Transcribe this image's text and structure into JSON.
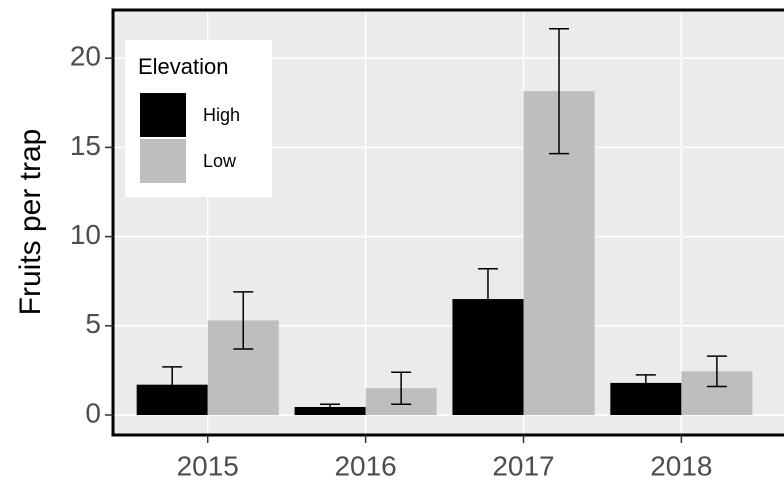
{
  "chart_data": {
    "type": "bar",
    "y_label": "Fruits per trap",
    "categories": [
      "2015",
      "2016",
      "2017",
      "2018"
    ],
    "legend_title": "Elevation",
    "series": [
      {
        "name": "High",
        "color": "#000000",
        "values": [
          1.7,
          0.45,
          6.5,
          1.8
        ],
        "errors": [
          1.0,
          0.15,
          1.7,
          0.45
        ]
      },
      {
        "name": "Low",
        "color": "#bebebe",
        "values": [
          5.3,
          1.5,
          18.15,
          2.45
        ],
        "errors": [
          1.6,
          0.9,
          3.5,
          0.85
        ]
      }
    ],
    "ylim": [
      -1.12,
      22.7
    ],
    "yticks": [
      0,
      5,
      10,
      15,
      20
    ],
    "grid": true,
    "legend": "top-left"
  }
}
